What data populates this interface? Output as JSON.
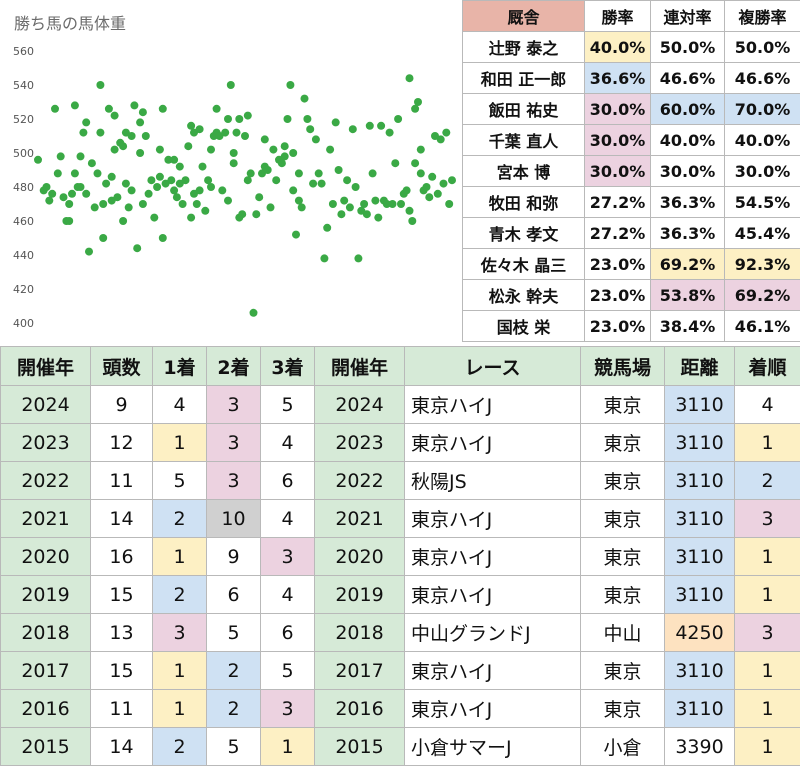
{
  "colors": {
    "header_jockey": "#e8b4a8",
    "header_results": "#d6ead7",
    "year_cell": "#d6ead7",
    "yellow": "#fdf0c4",
    "blue": "#cfe1f3",
    "pink": "#ecd2e0",
    "gray": "#d0d0d0",
    "orange": "#fde2c0",
    "dot": "#3aa945"
  },
  "chart_data": {
    "type": "scatter",
    "title": "勝ち馬の馬体重",
    "ylim": [
      400,
      560
    ],
    "yticks": [
      "560",
      "540",
      "520",
      "500",
      "480",
      "460",
      "440",
      "420",
      "400"
    ],
    "grid": false,
    "legend": "none",
    "values": [
      496,
      478,
      480,
      472,
      476,
      526,
      488,
      498,
      474,
      460,
      460,
      470,
      476,
      528,
      488,
      480,
      498,
      480,
      512,
      476,
      518,
      442,
      494,
      468,
      488,
      540,
      512,
      470,
      450,
      482,
      526,
      472,
      486,
      522,
      502,
      474,
      506,
      460,
      504,
      482,
      512,
      468,
      478,
      510,
      528,
      444,
      500,
      518,
      524,
      470,
      510,
      476,
      484,
      462,
      480,
      486,
      502,
      450,
      526,
      482,
      496,
      484,
      478,
      496,
      474,
      482,
      492,
      470,
      484,
      504,
      462,
      516,
      476,
      512,
      470,
      478,
      514,
      492,
      466,
      484,
      480,
      502,
      510,
      526,
      512,
      510,
      478,
      512,
      472,
      520,
      540,
      500,
      494,
      512,
      462,
      520,
      464,
      510,
      484,
      522,
      488,
      406,
      464,
      474,
      488,
      508,
      492,
      490,
      468,
      502,
      484,
      496,
      494,
      498,
      504,
      520,
      540,
      478,
      500,
      452,
      488,
      472,
      468,
      532,
      520,
      514,
      482,
      508,
      488,
      482,
      438,
      456,
      502,
      470,
      518,
      490,
      464,
      472,
      484,
      468,
      514,
      480,
      438,
      466,
      470,
      464,
      516,
      488,
      472,
      462,
      516,
      472,
      470,
      512,
      470,
      494,
      520,
      470,
      476,
      478,
      544,
      466,
      460,
      494,
      526,
      530,
      488,
      502,
      478,
      480,
      474,
      486,
      510,
      476,
      508,
      482,
      512,
      470,
      484
    ],
    "x": [
      1,
      3,
      4,
      5,
      6,
      7,
      8,
      9,
      10,
      11,
      12,
      12,
      13,
      14,
      14,
      15,
      16,
      16,
      17,
      18,
      18,
      19,
      20,
      21,
      22,
      23,
      23,
      24,
      24,
      25,
      26,
      27,
      27,
      28,
      28,
      29,
      30,
      31,
      31,
      32,
      32,
      33,
      34,
      34,
      35,
      36,
      37,
      37,
      38,
      38,
      39,
      40,
      41,
      42,
      43,
      44,
      44,
      45,
      45,
      46,
      47,
      48,
      49,
      49,
      50,
      51,
      51,
      52,
      53,
      54,
      55,
      55,
      56,
      56,
      57,
      58,
      58,
      59,
      60,
      61,
      62,
      62,
      63,
      64,
      64,
      65,
      66,
      67,
      68,
      68,
      69,
      70,
      70,
      71,
      72,
      72,
      73,
      74,
      75,
      75,
      76,
      77,
      78,
      79,
      80,
      81,
      81,
      82,
      83,
      84,
      85,
      86,
      87,
      88,
      88,
      89,
      90,
      91,
      91,
      92,
      93,
      93,
      94,
      95,
      96,
      97,
      98,
      99,
      100,
      101,
      102,
      103,
      104,
      105,
      106,
      107,
      108,
      109,
      110,
      111,
      112,
      113,
      114,
      115,
      116,
      117,
      118,
      119,
      120,
      121,
      122,
      123,
      124,
      125,
      126,
      127,
      128,
      129,
      130,
      131,
      132,
      132,
      133,
      134,
      134,
      135,
      136,
      136,
      137,
      138,
      139,
      140,
      141,
      142,
      143,
      144,
      145,
      146,
      147
    ]
  },
  "jockey_table": {
    "headers": [
      "厩舎",
      "勝率",
      "連対率",
      "複勝率"
    ],
    "rows": [
      {
        "name": "辻野 泰之",
        "win": "40.0%",
        "top2": "50.0%",
        "top3": "50.0%",
        "colors": [
          "",
          "yellow",
          "",
          ""
        ]
      },
      {
        "name": "和田 正一郎",
        "win": "36.6%",
        "top2": "46.6%",
        "top3": "46.6%",
        "colors": [
          "",
          "blue",
          "",
          ""
        ]
      },
      {
        "name": "飯田 祐史",
        "win": "30.0%",
        "top2": "60.0%",
        "top3": "70.0%",
        "colors": [
          "",
          "pink",
          "blue",
          "blue"
        ]
      },
      {
        "name": "千葉 直人",
        "win": "30.0%",
        "top2": "40.0%",
        "top3": "40.0%",
        "colors": [
          "",
          "pink",
          "",
          ""
        ]
      },
      {
        "name": "宮本 博",
        "win": "30.0%",
        "top2": "30.0%",
        "top3": "30.0%",
        "colors": [
          "",
          "pink",
          "",
          ""
        ]
      },
      {
        "name": "牧田 和弥",
        "win": "27.2%",
        "top2": "36.3%",
        "top3": "54.5%",
        "colors": [
          "",
          "",
          "",
          ""
        ]
      },
      {
        "name": "青木 孝文",
        "win": "27.2%",
        "top2": "36.3%",
        "top3": "45.4%",
        "colors": [
          "",
          "",
          "",
          ""
        ]
      },
      {
        "name": "佐々木 晶三",
        "win": "23.0%",
        "top2": "69.2%",
        "top3": "92.3%",
        "colors": [
          "",
          "",
          "yellow",
          "yellow"
        ]
      },
      {
        "name": "松永 幹夫",
        "win": "23.0%",
        "top2": "53.8%",
        "top3": "69.2%",
        "colors": [
          "",
          "",
          "pink",
          "pink"
        ]
      },
      {
        "name": "国枝 栄",
        "win": "23.0%",
        "top2": "38.4%",
        "top3": "46.1%",
        "colors": [
          "",
          "",
          "",
          ""
        ]
      }
    ]
  },
  "results_table": {
    "headers": [
      "開催年",
      "頭数",
      "1着",
      "2着",
      "3着",
      "開催年",
      "レース",
      "競馬場",
      "距離",
      "着順"
    ],
    "rows": [
      {
        "year": "2024",
        "runners": "9",
        "first": "4",
        "second": "3",
        "third": "5",
        "year2": "2024",
        "race": "東京ハイJ",
        "course": "東京",
        "distance": "3110",
        "finish": "4",
        "colors": {
          "first": "",
          "second": "pink",
          "third": "",
          "distance": "blue",
          "finish": ""
        }
      },
      {
        "year": "2023",
        "runners": "12",
        "first": "1",
        "second": "3",
        "third": "4",
        "year2": "2023",
        "race": "東京ハイJ",
        "course": "東京",
        "distance": "3110",
        "finish": "1",
        "colors": {
          "first": "yellow",
          "second": "pink",
          "third": "",
          "distance": "blue",
          "finish": "yellow"
        }
      },
      {
        "year": "2022",
        "runners": "11",
        "first": "5",
        "second": "3",
        "third": "6",
        "year2": "2022",
        "race": "秋陽JS",
        "course": "東京",
        "distance": "3110",
        "finish": "2",
        "colors": {
          "first": "",
          "second": "pink",
          "third": "",
          "distance": "blue",
          "finish": "blue"
        }
      },
      {
        "year": "2021",
        "runners": "14",
        "first": "2",
        "second": "10",
        "third": "4",
        "year2": "2021",
        "race": "東京ハイJ",
        "course": "東京",
        "distance": "3110",
        "finish": "3",
        "colors": {
          "first": "blue",
          "second": "gray",
          "third": "",
          "distance": "blue",
          "finish": "pink"
        }
      },
      {
        "year": "2020",
        "runners": "16",
        "first": "1",
        "second": "9",
        "third": "3",
        "year2": "2020",
        "race": "東京ハイJ",
        "course": "東京",
        "distance": "3110",
        "finish": "1",
        "colors": {
          "first": "yellow",
          "second": "",
          "third": "pink",
          "distance": "blue",
          "finish": "yellow"
        }
      },
      {
        "year": "2019",
        "runners": "15",
        "first": "2",
        "second": "6",
        "third": "4",
        "year2": "2019",
        "race": "東京ハイJ",
        "course": "東京",
        "distance": "3110",
        "finish": "1",
        "colors": {
          "first": "blue",
          "second": "",
          "third": "",
          "distance": "blue",
          "finish": "yellow"
        }
      },
      {
        "year": "2018",
        "runners": "13",
        "first": "3",
        "second": "5",
        "third": "6",
        "year2": "2018",
        "race": "中山グランドJ",
        "course": "中山",
        "distance": "4250",
        "finish": "3",
        "colors": {
          "first": "pink",
          "second": "",
          "third": "",
          "distance": "orange",
          "finish": "pink"
        }
      },
      {
        "year": "2017",
        "runners": "15",
        "first": "1",
        "second": "2",
        "third": "5",
        "year2": "2017",
        "race": "東京ハイJ",
        "course": "東京",
        "distance": "3110",
        "finish": "1",
        "colors": {
          "first": "yellow",
          "second": "blue",
          "third": "",
          "distance": "blue",
          "finish": "yellow"
        }
      },
      {
        "year": "2016",
        "runners": "11",
        "first": "1",
        "second": "2",
        "third": "3",
        "year2": "2016",
        "race": "東京ハイJ",
        "course": "東京",
        "distance": "3110",
        "finish": "1",
        "colors": {
          "first": "yellow",
          "second": "blue",
          "third": "pink",
          "distance": "blue",
          "finish": "yellow"
        }
      },
      {
        "year": "2015",
        "runners": "14",
        "first": "2",
        "second": "5",
        "third": "1",
        "year2": "2015",
        "race": "小倉サマーJ",
        "course": "小倉",
        "distance": "3390",
        "finish": "1",
        "colors": {
          "first": "blue",
          "second": "",
          "third": "yellow",
          "distance": "",
          "finish": "yellow"
        }
      }
    ]
  }
}
